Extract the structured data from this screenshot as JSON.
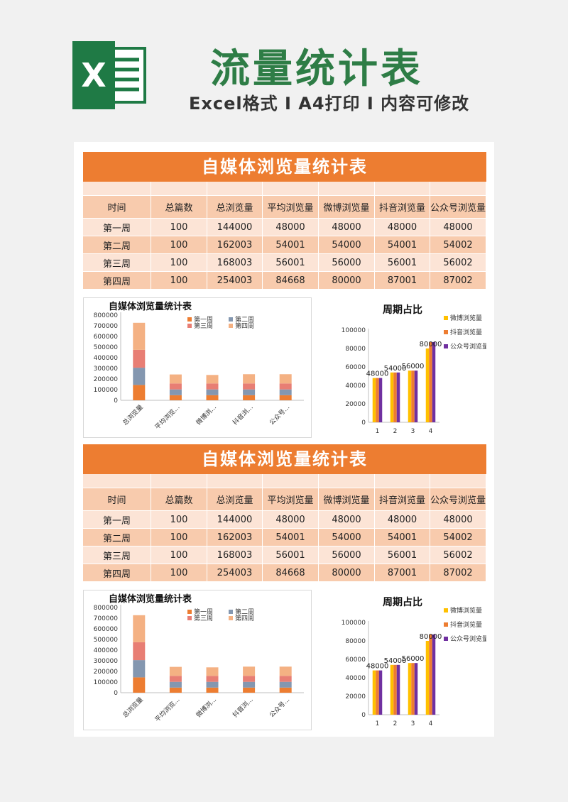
{
  "header": {
    "title": "流量统计表",
    "subtitle": "Excel格式 I A4打印 I 内容可修改",
    "logo_letter": "X",
    "logo_color": "#1f7a45"
  },
  "sheets": [
    {
      "title": "自媒体浏览量统计表",
      "columns": [
        "时间",
        "总篇数",
        "总浏览量",
        "平均浏览量",
        "微博浏览量",
        "抖音浏览量",
        "公众号浏览量"
      ],
      "rows": [
        [
          "第一周",
          "100",
          "144000",
          "48000",
          "48000",
          "48000",
          "48000"
        ],
        [
          "第二周",
          "100",
          "162003",
          "54001",
          "54000",
          "54001",
          "54002"
        ],
        [
          "第三周",
          "100",
          "168003",
          "56001",
          "56000",
          "56001",
          "56002"
        ],
        [
          "第四周",
          "100",
          "254003",
          "84668",
          "80000",
          "87001",
          "87002"
        ]
      ]
    },
    {
      "title": "自媒体浏览量统计表",
      "columns": [
        "时间",
        "总篇数",
        "总浏览量",
        "平均浏览量",
        "微博浏览量",
        "抖音浏览量",
        "公众号浏览量"
      ],
      "rows": [
        [
          "第一周",
          "100",
          "144000",
          "48000",
          "48000",
          "48000",
          "48000"
        ],
        [
          "第二周",
          "100",
          "162003",
          "54001",
          "54000",
          "54001",
          "54002"
        ],
        [
          "第三周",
          "100",
          "168003",
          "56001",
          "56000",
          "56001",
          "56002"
        ],
        [
          "第四周",
          "100",
          "254003",
          "84668",
          "80000",
          "87001",
          "87002"
        ]
      ]
    }
  ],
  "chart_data": [
    {
      "type": "bar",
      "stacked": true,
      "title": "自媒体浏览量统计表",
      "categories": [
        "总浏览量",
        "平均浏览...",
        "微博浏...",
        "抖音浏...",
        "公众号..."
      ],
      "series": [
        {
          "name": "第一周",
          "color": "#ed7d31",
          "values": [
            144000,
            48000,
            48000,
            48000,
            48000
          ]
        },
        {
          "name": "第二周",
          "color": "#8497b0",
          "values": [
            162003,
            54001,
            54000,
            54001,
            54002
          ]
        },
        {
          "name": "第三周",
          "color": "#e87e74",
          "values": [
            168003,
            56001,
            56000,
            56001,
            56002
          ]
        },
        {
          "name": "第四周",
          "color": "#f4b183",
          "values": [
            254003,
            84668,
            80000,
            87001,
            87002
          ]
        }
      ],
      "yticks": [
        "0",
        "100000",
        "200000",
        "300000",
        "400000",
        "500000",
        "600000",
        "700000",
        "800000"
      ],
      "ylim": [
        0,
        800000
      ],
      "legend": "top-right"
    },
    {
      "type": "bar",
      "title": "周期占比",
      "categories": [
        "1",
        "2",
        "3",
        "4"
      ],
      "series": [
        {
          "name": "微博浏览量",
          "color": "#ffc000",
          "values": [
            48000,
            54000,
            56000,
            80000
          ]
        },
        {
          "name": "抖音浏览量",
          "color": "#ed7d31",
          "values": [
            48000,
            54001,
            56001,
            87001
          ]
        },
        {
          "name": "公众号浏览量",
          "color": "#7030a0",
          "values": [
            48000,
            54002,
            56002,
            87002
          ]
        }
      ],
      "data_labels": [
        "48000",
        "54000",
        "56000",
        "80000"
      ],
      "yticks": [
        "0",
        "20000",
        "40000",
        "60000",
        "80000",
        "100000"
      ],
      "ylim": [
        0,
        100000
      ],
      "legend": "right"
    }
  ]
}
